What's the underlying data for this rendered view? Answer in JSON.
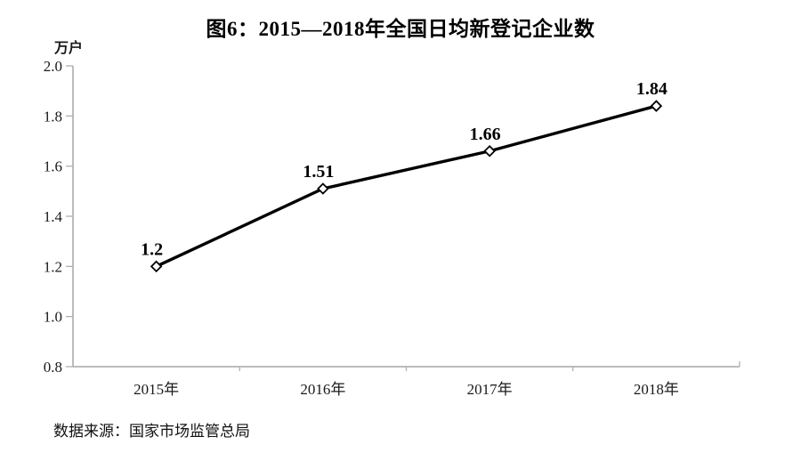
{
  "chart_data": {
    "type": "line",
    "title": "图6：2015—2018年全国日均新登记企业数",
    "unit_label": "万户",
    "categories": [
      "2015年",
      "2016年",
      "2017年",
      "2018年"
    ],
    "values": [
      1.2,
      1.51,
      1.66,
      1.84
    ],
    "value_labels": [
      "1.2",
      "1.51",
      "1.66",
      "1.84"
    ],
    "ylim": [
      0.8,
      2.0
    ],
    "ytick_step": 0.2,
    "yticks": [
      "2.0",
      "1.8",
      "1.6",
      "1.4",
      "1.2",
      "1.0",
      "0.8"
    ],
    "grid": false,
    "legend": "none",
    "line_color": "#000000",
    "marker_style": "open-diamond",
    "marker_fill": "#ffffff",
    "marker_stroke": "#000000",
    "axis_color": "#a6a6a6",
    "tick_color": "#b0b0b0"
  },
  "source": {
    "text": "数据来源：国家市场监管总局"
  }
}
